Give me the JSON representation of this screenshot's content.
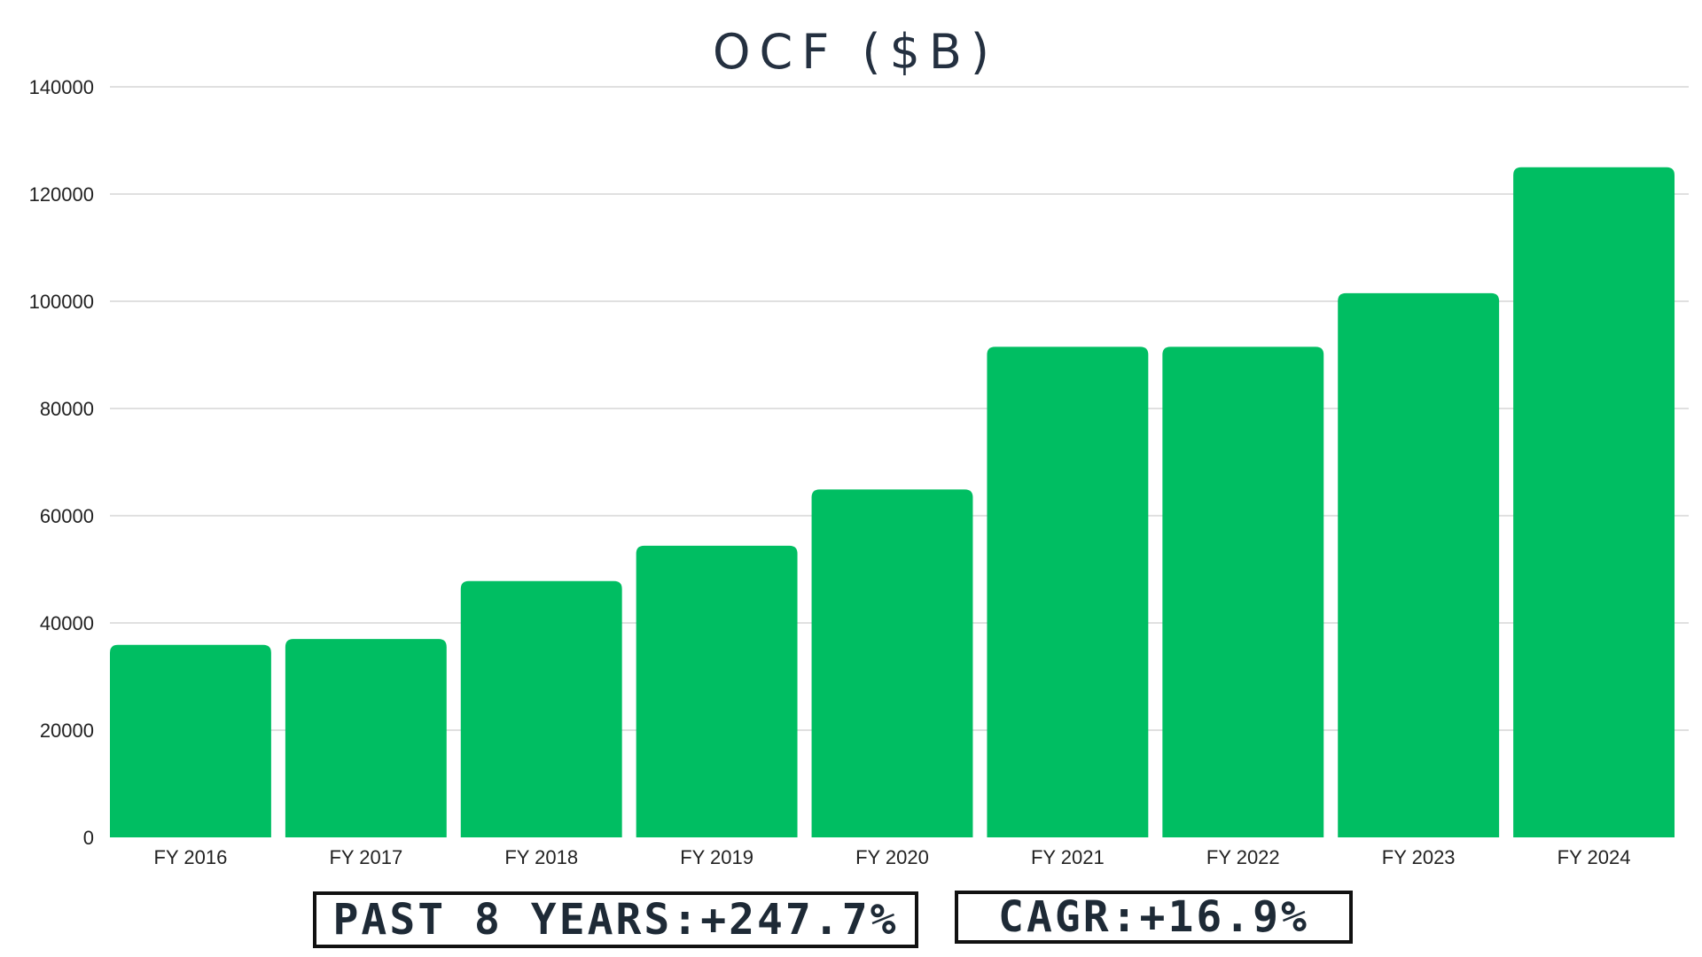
{
  "chart_data": {
    "type": "bar",
    "title": "OCF ($B)",
    "xlabel": "",
    "ylabel": "",
    "categories": [
      "FY 2016",
      "FY 2017",
      "FY 2018",
      "FY 2019",
      "FY 2020",
      "FY 2021",
      "FY 2022",
      "FY 2023",
      "FY 2024"
    ],
    "values": [
      35900,
      37000,
      47800,
      54400,
      64900,
      91500,
      91500,
      101500,
      125000
    ],
    "ylim": [
      0,
      140000
    ],
    "yticks": [
      "0",
      "20000",
      "40000",
      "60000",
      "80000",
      "100000",
      "120000",
      "140000"
    ],
    "grid": true,
    "legend": "none",
    "bar_color": "#00be62"
  },
  "stats": {
    "past_years": "PAST 8 YEARS:+247.7%",
    "cagr": "CAGR:+16.9%"
  },
  "colors": {
    "bar": "#00be62",
    "title": "#243040",
    "grid": "#d6d6d6"
  }
}
